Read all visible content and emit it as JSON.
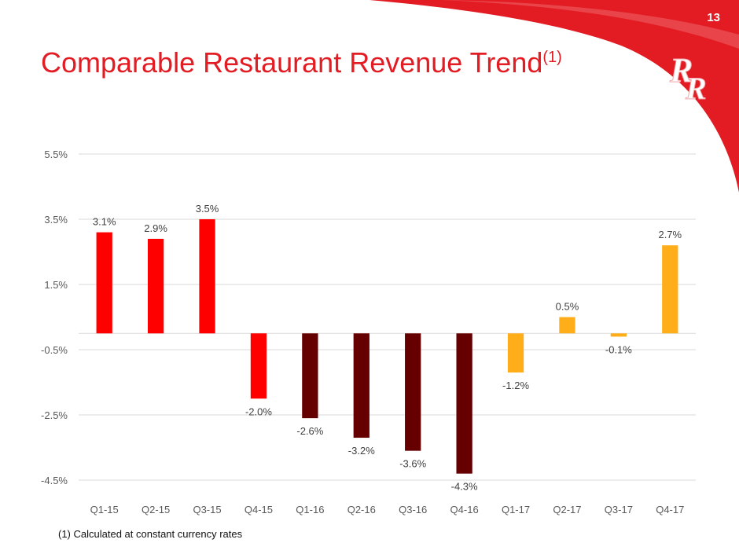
{
  "page": {
    "number": "13"
  },
  "title": {
    "main": "Comparable Restaurant Revenue Trend",
    "sup": "(1)"
  },
  "footnote": "(1) Calculated at constant currency rates",
  "logo": {
    "letters": "RR"
  },
  "colors": {
    "accent": "#e31b23",
    "bar_2015": "#ff0000",
    "bar_2016": "#660000",
    "bar_2017": "#ffae1a",
    "grid": "#d9d9d9"
  },
  "chart_data": {
    "type": "bar",
    "title": "",
    "xlabel": "",
    "ylabel": "",
    "ylim": [
      -4.5,
      5.5
    ],
    "yticks": [
      5.5,
      3.5,
      1.5,
      -0.5,
      -2.5,
      -4.5
    ],
    "ytick_labels": [
      "5.5%",
      "3.5%",
      "1.5%",
      "-0.5%",
      "-2.5%",
      "-4.5%"
    ],
    "grid": true,
    "legend": "none",
    "categories": [
      "Q1-15",
      "Q2-15",
      "Q3-15",
      "Q4-15",
      "Q1-16",
      "Q2-16",
      "Q3-16",
      "Q4-16",
      "Q1-17",
      "Q2-17",
      "Q3-17",
      "Q4-17"
    ],
    "values": [
      3.1,
      2.9,
      3.5,
      -2.0,
      -2.6,
      -3.2,
      -3.6,
      -4.3,
      -1.2,
      0.5,
      -0.1,
      2.7
    ],
    "value_labels": [
      "3.1%",
      "2.9%",
      "3.5%",
      "-2.0%",
      "-2.6%",
      "-3.2%",
      "-3.6%",
      "-4.3%",
      "-1.2%",
      "0.5%",
      "-0.1%",
      "2.7%"
    ],
    "bar_colors": [
      "#ff0000",
      "#ff0000",
      "#ff0000",
      "#ff0000",
      "#660000",
      "#660000",
      "#660000",
      "#660000",
      "#ffae1a",
      "#ffae1a",
      "#ffae1a",
      "#ffae1a"
    ]
  }
}
